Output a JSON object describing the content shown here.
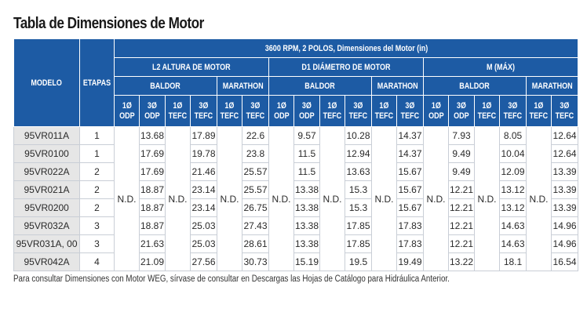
{
  "title": "Tabla de Dimensiones de Motor",
  "header": {
    "modelo": "MODELO",
    "etapas": "ETAPAS",
    "top": "3600 RPM, 2 POLOS, Dimensiones del Motor (in)",
    "groups": [
      "L2 ALTURA DE MOTOR",
      "D1 DIÁMETRO DE MOTOR",
      "M (MÁX)"
    ],
    "baldor": "BALDOR",
    "marathon": "MARATHON",
    "col_labels": {
      "c1_odp": "1Ø ODP",
      "c3_odp": "3Ø ODP",
      "c1_tefc": "1Ø TEFC",
      "c3_tefc": "3Ø TEFC"
    }
  },
  "nd_label": "N.D.",
  "rows": [
    {
      "model": "95VR011A",
      "stage": "1",
      "l2": {
        "b3odp": "13.68",
        "b3tefc": "17.89",
        "m3tefc": "22.6"
      },
      "d1": {
        "b3odp": "9.57",
        "b3tefc": "10.28",
        "m3tefc": "14.37"
      },
      "m": {
        "b3odp": "7.93",
        "b3tefc": "8.05",
        "m3tefc": "12.64"
      }
    },
    {
      "model": "95VR0100",
      "stage": "1",
      "l2": {
        "b3odp": "17.69",
        "b3tefc": "19.78",
        "m3tefc": "23.8"
      },
      "d1": {
        "b3odp": "11.5",
        "b3tefc": "12.94",
        "m3tefc": "14.37"
      },
      "m": {
        "b3odp": "9.49",
        "b3tefc": "10.04",
        "m3tefc": "12.64"
      }
    },
    {
      "model": "95VR022A",
      "stage": "2",
      "l2": {
        "b3odp": "17.69",
        "b3tefc": "21.46",
        "m3tefc": "25.57"
      },
      "d1": {
        "b3odp": "11.5",
        "b3tefc": "13.63",
        "m3tefc": "15.67"
      },
      "m": {
        "b3odp": "9.49",
        "b3tefc": "12.09",
        "m3tefc": "13.39"
      }
    },
    {
      "model": "95VR021A",
      "stage": "2",
      "l2": {
        "b3odp": "18.87",
        "b3tefc": "23.14",
        "m3tefc": "25.57"
      },
      "d1": {
        "b3odp": "13.38",
        "b3tefc": "15.3",
        "m3tefc": "15.67"
      },
      "m": {
        "b3odp": "12.21",
        "b3tefc": "13.12",
        "m3tefc": "13.39"
      }
    },
    {
      "model": "95VR0200",
      "stage": "2",
      "l2": {
        "b3odp": "18.87",
        "b3tefc": "23.14",
        "m3tefc": "26.75"
      },
      "d1": {
        "b3odp": "13.38",
        "b3tefc": "15.3",
        "m3tefc": "15.67"
      },
      "m": {
        "b3odp": "12.21",
        "b3tefc": "13.12",
        "m3tefc": "13.39"
      }
    },
    {
      "model": "95VR032A",
      "stage": "3",
      "l2": {
        "b3odp": "18.87",
        "b3tefc": "25.03",
        "m3tefc": "27.43"
      },
      "d1": {
        "b3odp": "13.38",
        "b3tefc": "17.85",
        "m3tefc": "17.83"
      },
      "m": {
        "b3odp": "12.21",
        "b3tefc": "14.63",
        "m3tefc": "14.96"
      }
    },
    {
      "model": "95VR031A, 00",
      "stage": "3",
      "l2": {
        "b3odp": "21.63",
        "b3tefc": "25.03",
        "m3tefc": "28.61"
      },
      "d1": {
        "b3odp": "13.38",
        "b3tefc": "17.85",
        "m3tefc": "17.83"
      },
      "m": {
        "b3odp": "12.21",
        "b3tefc": "14.63",
        "m3tefc": "14.96"
      }
    },
    {
      "model": "95VR042A",
      "stage": "4",
      "l2": {
        "b3odp": "21.09",
        "b3tefc": "27.56",
        "m3tefc": "30.73"
      },
      "d1": {
        "b3odp": "15.19",
        "b3tefc": "19.5",
        "m3tefc": "19.49"
      },
      "m": {
        "b3odp": "13.22",
        "b3tefc": "18.1",
        "m3tefc": "16.54"
      }
    }
  ],
  "footnote": "Para consultar Dimensiones con Motor WEG, sírvase de consultar en Descargas las Hojas de Catálogo para Hidráulica Anterior."
}
